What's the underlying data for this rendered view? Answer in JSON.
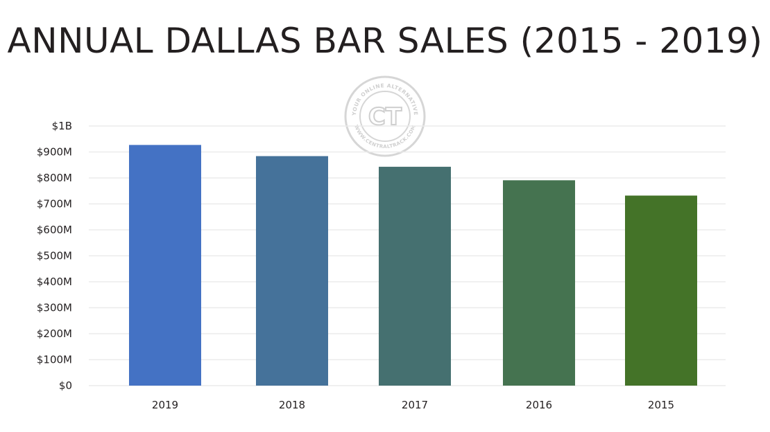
{
  "chart_data": {
    "type": "bar",
    "title": "ANNUAL DALLAS BAR SALES (2015 - 2019)",
    "xlabel": "",
    "ylabel": "",
    "categories": [
      "2019",
      "2018",
      "2017",
      "2016",
      "2015"
    ],
    "values": [
      927000000,
      884000000,
      843000000,
      791000000,
      732000000
    ],
    "colors": [
      "#4472c4",
      "#45729a",
      "#457070",
      "#457350",
      "#447328"
    ],
    "ylim": [
      0,
      1000000000
    ],
    "yticks": [
      0,
      100000000,
      200000000,
      300000000,
      400000000,
      500000000,
      600000000,
      700000000,
      800000000,
      900000000,
      1000000000
    ],
    "ytick_labels": [
      "$0",
      "$100M",
      "$200M",
      "$300M",
      "$400M",
      "$500M",
      "$600M",
      "$700M",
      "$800M",
      "$900M",
      "$1B"
    ],
    "grid": true,
    "legend": "none"
  },
  "watermark": {
    "text_top": "YOUR ONLINE ALTERNATIVE",
    "text_bottom": "WWW.CENTRALTRACK.COM",
    "letters": "CT"
  },
  "colors": {
    "gridline": "#ebebeb",
    "text": "#231f20",
    "watermark": "#cfcfcf"
  }
}
